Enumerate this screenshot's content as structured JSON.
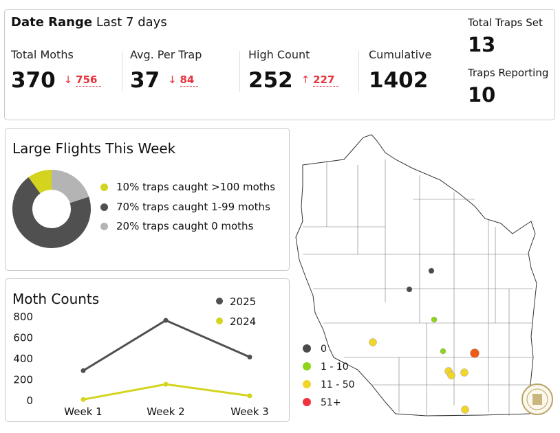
{
  "header": {
    "date_range_label": "Date Range",
    "date_range_value": "Last 7 days",
    "stats": [
      {
        "label": "Total Moths",
        "value": "370",
        "change": "756",
        "direction": "down",
        "arrow": "↓"
      },
      {
        "label": "Avg. Per Trap",
        "value": "37",
        "change": "84",
        "direction": "down",
        "arrow": "↓"
      },
      {
        "label": "High Count",
        "value": "252",
        "change": "227",
        "direction": "up",
        "arrow": "↑"
      },
      {
        "label": "Cumulative",
        "value": "1402"
      }
    ],
    "total_traps_label": "Total Traps Set",
    "total_traps_value": "13",
    "reporting_label": "Traps Reporting",
    "reporting_value": "10"
  },
  "flights": {
    "title": "Large Flights This Week",
    "slices": [
      {
        "label": "10% traps caught >100 moths",
        "percent": 10,
        "color": "#d4d41e"
      },
      {
        "label": "70% traps caught 1-99 moths",
        "percent": 70,
        "color": "#505050"
      },
      {
        "label": "20% traps caught 0 moths",
        "percent": 20,
        "color": "#b4b4b4"
      }
    ]
  },
  "chart_data": {
    "type": "line",
    "title": "Moth Counts",
    "categories": [
      "Week 1",
      "Week 2",
      "Week 3"
    ],
    "yticks": [
      "0",
      "200",
      "400",
      "600",
      "800"
    ],
    "ylim": [
      0,
      800
    ],
    "legend": "top-right",
    "grid": false,
    "series": [
      {
        "name": "2025",
        "values": [
          280,
          760,
          410
        ],
        "color": "#505050"
      },
      {
        "name": "2024",
        "values": [
          5,
          150,
          40
        ],
        "color": "#d4d41e"
      }
    ]
  },
  "map": {
    "legend": [
      {
        "label": "0",
        "color": "#4a4a4a"
      },
      {
        "label": "1 - 10",
        "color": "#8ed51b"
      },
      {
        "label": "11 - 50",
        "color": "#f0d52a"
      },
      {
        "label": "51+",
        "color": "#f0323c"
      }
    ],
    "trap_categories": [
      "0",
      "0",
      "1 - 10",
      "1 - 10",
      "11 - 50",
      "11 - 50",
      "11 - 50",
      "11 - 50",
      "11 - 50",
      "51+"
    ]
  }
}
